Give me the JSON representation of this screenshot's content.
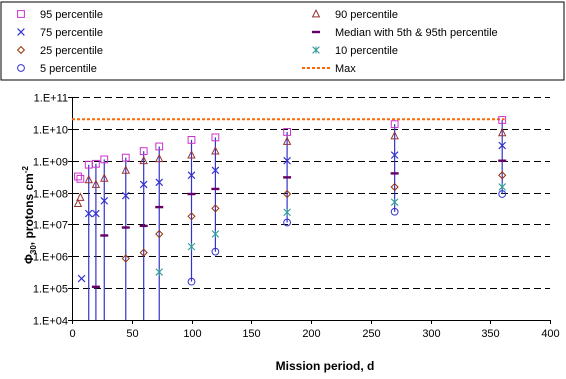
{
  "chart_data": {
    "type": "scatter",
    "xlabel": "Mission period, d",
    "ylabel_main": "Φ",
    "ylabel_sub": "30",
    "ylabel_rest": ", protons cm",
    "ylabel_sup": "-2",
    "xlim": [
      0,
      400
    ],
    "ylim": [
      10000,
      100000000000
    ],
    "ylog": true,
    "grid": "horizontal-dashed",
    "legend_position": "top",
    "x_ticks": [
      "0",
      "50",
      "100",
      "150",
      "200",
      "250",
      "300",
      "350",
      "400"
    ],
    "y_ticks": [
      "1.E+04",
      "1.E+05",
      "1.E+06",
      "1.E+07",
      "1.E+08",
      "1.E+09",
      "1.E+10",
      "1.E+11"
    ],
    "max_value": 20000000000,
    "series": [
      {
        "name": "95 percentile",
        "marker": "square",
        "color": "#cc33cc",
        "x": [
          5,
          7,
          14,
          20,
          27,
          45,
          60,
          73,
          100,
          120,
          180,
          270,
          360
        ],
        "y": [
          320000000,
          270000000,
          750000000,
          800000000,
          1100000000,
          1250000000,
          2000000000,
          2800000000,
          4500000000,
          5400000000,
          8000000000,
          14000000000,
          19000000000
        ]
      },
      {
        "name": "90 percentile",
        "marker": "triangle",
        "color": "#993333",
        "x": [
          5,
          7,
          14,
          20,
          27,
          45,
          60,
          73,
          100,
          120,
          180,
          270,
          360
        ],
        "y": [
          45000000,
          70000000,
          250000000,
          180000000,
          280000000,
          500000000,
          1000000000,
          1150000000,
          1500000000,
          2000000000,
          4000000000,
          6000000000,
          7500000000
        ]
      },
      {
        "name": "75 percentile",
        "marker": "x",
        "color": "#3333cc",
        "x": [
          8,
          14,
          20,
          27,
          45,
          60,
          73,
          100,
          120,
          180,
          270,
          360
        ],
        "y": [
          200000,
          22000000,
          22000000,
          55000000,
          80000000,
          180000000,
          210000000,
          350000000,
          500000000,
          1000000000,
          1500000000,
          3000000000
        ]
      },
      {
        "name": "Median with 5th & 95th percentile",
        "marker": "dash",
        "color": "#660066",
        "x": [
          20,
          27,
          45,
          60,
          73,
          100,
          120,
          180,
          270,
          360
        ],
        "y": [
          110000,
          4500000,
          8000000,
          9000000,
          35000000,
          90000000,
          130000000,
          300000000,
          400000000,
          1000000000
        ]
      },
      {
        "name": "25 percentile",
        "marker": "diamond",
        "color": "#993300",
        "x": [
          45,
          60,
          73,
          100,
          120,
          180,
          270,
          360
        ],
        "y": [
          850000,
          1300000,
          5000000,
          18000000,
          32000000,
          90000000,
          150000000,
          350000000
        ]
      },
      {
        "name": "10 percentile",
        "marker": "asterisk",
        "color": "#339999",
        "x": [
          73,
          100,
          120,
          180,
          270,
          360
        ],
        "y": [
          320000,
          2000000,
          5000000,
          24000000,
          50000000,
          150000000
        ]
      },
      {
        "name": "5 percentile",
        "marker": "circle",
        "color": "#3333cc",
        "x": [
          100,
          120,
          180,
          270,
          360
        ],
        "y": [
          160000,
          1400000,
          11500000,
          25000000,
          90000000
        ]
      },
      {
        "name": "Max",
        "marker": "dashed-line",
        "color": "#ff6600"
      }
    ]
  }
}
